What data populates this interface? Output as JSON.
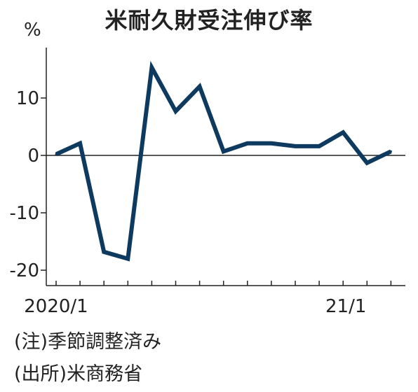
{
  "title": "米耐久財受注伸び率",
  "unit": "%",
  "notes": {
    "adjustment": "(注)季節調整済み",
    "source": "(出所)米商務省"
  },
  "colors": {
    "line": "#0f3a60",
    "axis": "#222222"
  },
  "chart_data": {
    "type": "line",
    "x": [
      "2020/1",
      "2020/2",
      "2020/3",
      "2020/4",
      "2020/5",
      "2020/6",
      "2020/7",
      "2020/8",
      "2020/9",
      "2020/10",
      "2020/11",
      "2020/12",
      "2021/1",
      "2021/2",
      "2021/3"
    ],
    "series": [
      {
        "values": [
          0.2,
          2.1,
          -16.8,
          -18.0,
          15.3,
          7.7,
          12.0,
          0.7,
          2.1,
          2.1,
          1.6,
          1.6,
          4.0,
          -1.3,
          0.7
        ]
      }
    ],
    "ylim": [
      -22,
      18
    ],
    "yticks": [
      10,
      0,
      -10,
      -20
    ],
    "ytick_labels": [
      "10",
      "0",
      "-10",
      "-20"
    ],
    "xtick_labels": [
      {
        "at": "2020/1",
        "label": "2020/1"
      },
      {
        "at": "2021/1",
        "label": "21/1"
      }
    ],
    "xlabel": "",
    "ylabel": "",
    "grid": false,
    "legend": "none"
  }
}
